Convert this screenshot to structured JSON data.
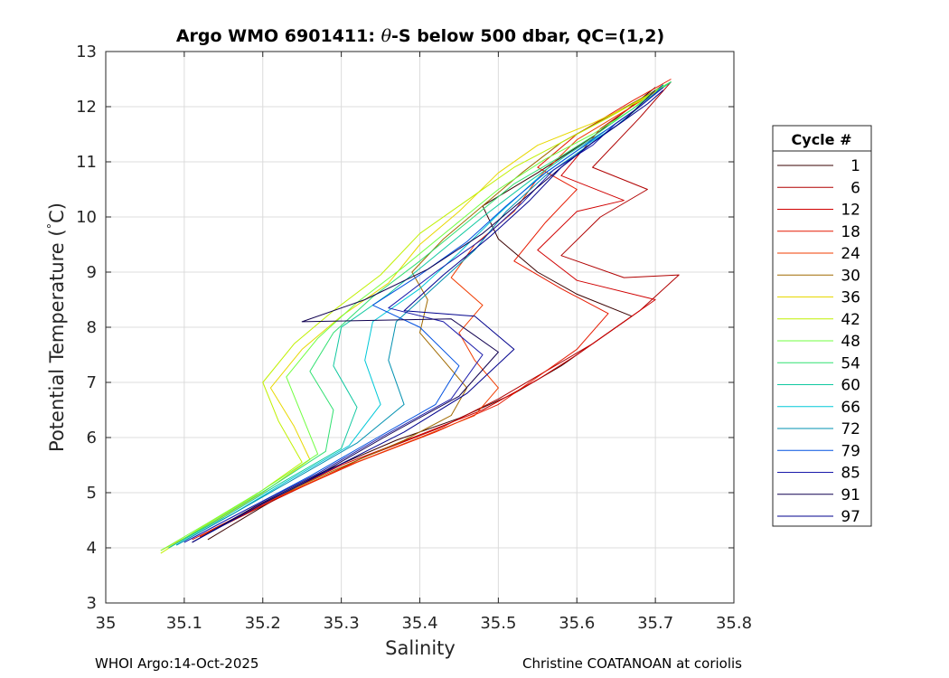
{
  "chart_data": {
    "type": "line",
    "title": "Argo WMO 6901411: θ-S below 500 dbar,  QC=(1,2)",
    "title_parts": {
      "before": "Argo WMO 6901411: ",
      "symbol": "θ",
      "after": "-S below 500 dbar,  QC=(1,2)"
    },
    "xlabel": "Salinity",
    "ylabel": "Potential Temperature (°C)",
    "ylabel_parts": {
      "main": "Potential Temperature (",
      "deg": "°",
      "unit": "C)"
    },
    "xlim": [
      35.0,
      35.8
    ],
    "ylim": [
      3,
      13
    ],
    "xticks": [
      35.0,
      35.1,
      35.2,
      35.3,
      35.4,
      35.5,
      35.6,
      35.7,
      35.8
    ],
    "xtick_labels": [
      "35",
      "35.1",
      "35.2",
      "35.3",
      "35.4",
      "35.5",
      "35.6",
      "35.7",
      "35.8"
    ],
    "yticks": [
      3,
      4,
      5,
      6,
      7,
      8,
      9,
      10,
      11,
      12,
      13
    ],
    "ytick_labels": [
      "3",
      "4",
      "5",
      "6",
      "7",
      "8",
      "9",
      "10",
      "11",
      "12",
      "13"
    ],
    "grid": true,
    "legend_title": "Cycle #",
    "legend_position": "outside-right",
    "series": [
      {
        "name": "1",
        "color": "#3a0000",
        "points": [
          [
            35.13,
            4.15
          ],
          [
            35.2,
            4.75
          ],
          [
            35.28,
            5.4
          ],
          [
            35.37,
            5.95
          ],
          [
            35.45,
            6.35
          ],
          [
            35.52,
            6.8
          ],
          [
            35.58,
            7.3
          ],
          [
            35.63,
            7.8
          ],
          [
            35.67,
            8.2
          ],
          [
            35.6,
            8.6
          ],
          [
            35.55,
            9.0
          ],
          [
            35.5,
            9.6
          ],
          [
            35.48,
            10.2
          ],
          [
            35.55,
            10.8
          ],
          [
            35.62,
            11.45
          ],
          [
            35.7,
            12.35
          ]
        ]
      },
      {
        "name": "6",
        "color": "#b00000",
        "points": [
          [
            35.12,
            4.2
          ],
          [
            35.22,
            4.9
          ],
          [
            35.33,
            5.65
          ],
          [
            35.43,
            6.2
          ],
          [
            35.5,
            6.7
          ],
          [
            35.56,
            7.2
          ],
          [
            35.62,
            7.7
          ],
          [
            35.68,
            8.3
          ],
          [
            35.73,
            8.95
          ],
          [
            35.66,
            8.9
          ],
          [
            35.58,
            9.3
          ],
          [
            35.63,
            10.0
          ],
          [
            35.69,
            10.5
          ],
          [
            35.62,
            10.9
          ],
          [
            35.68,
            11.8
          ],
          [
            35.72,
            12.45
          ]
        ]
      },
      {
        "name": "12",
        "color": "#d00000",
        "points": [
          [
            35.11,
            4.15
          ],
          [
            35.2,
            4.8
          ],
          [
            35.3,
            5.5
          ],
          [
            35.4,
            6.05
          ],
          [
            35.48,
            6.5
          ],
          [
            35.55,
            7.05
          ],
          [
            35.6,
            7.5
          ],
          [
            35.65,
            8.0
          ],
          [
            35.7,
            8.5
          ],
          [
            35.6,
            8.85
          ],
          [
            35.55,
            9.4
          ],
          [
            35.6,
            10.1
          ],
          [
            35.66,
            10.3
          ],
          [
            35.58,
            10.75
          ],
          [
            35.63,
            11.6
          ],
          [
            35.71,
            12.4
          ]
        ]
      },
      {
        "name": "18",
        "color": "#e61a00",
        "points": [
          [
            35.12,
            4.2
          ],
          [
            35.21,
            4.85
          ],
          [
            35.32,
            5.55
          ],
          [
            35.42,
            6.1
          ],
          [
            35.5,
            6.6
          ],
          [
            35.55,
            7.1
          ],
          [
            35.6,
            7.6
          ],
          [
            35.64,
            8.25
          ],
          [
            35.58,
            8.7
          ],
          [
            35.52,
            9.2
          ],
          [
            35.56,
            9.9
          ],
          [
            35.6,
            10.5
          ],
          [
            35.55,
            10.9
          ],
          [
            35.6,
            11.5
          ],
          [
            35.67,
            12.1
          ],
          [
            35.72,
            12.5
          ]
        ]
      },
      {
        "name": "24",
        "color": "#f03c00",
        "points": [
          [
            35.12,
            4.2
          ],
          [
            35.2,
            4.8
          ],
          [
            35.31,
            5.5
          ],
          [
            35.4,
            6.0
          ],
          [
            35.47,
            6.4
          ],
          [
            35.5,
            6.9
          ],
          [
            35.47,
            7.4
          ],
          [
            35.45,
            7.9
          ],
          [
            35.48,
            8.4
          ],
          [
            35.44,
            8.9
          ],
          [
            35.47,
            9.5
          ],
          [
            35.52,
            10.1
          ],
          [
            35.55,
            10.7
          ],
          [
            35.6,
            11.4
          ],
          [
            35.67,
            12.0
          ],
          [
            35.72,
            12.45
          ]
        ]
      },
      {
        "name": "30",
        "color": "#a06a00",
        "points": [
          [
            35.11,
            4.1
          ],
          [
            35.19,
            4.75
          ],
          [
            35.29,
            5.4
          ],
          [
            35.38,
            5.95
          ],
          [
            35.44,
            6.4
          ],
          [
            35.46,
            6.9
          ],
          [
            35.43,
            7.4
          ],
          [
            35.4,
            7.9
          ],
          [
            35.41,
            8.5
          ],
          [
            35.39,
            9.0
          ],
          [
            35.43,
            9.6
          ],
          [
            35.48,
            10.2
          ],
          [
            35.53,
            10.8
          ],
          [
            35.58,
            11.35
          ],
          [
            35.65,
            11.9
          ],
          [
            35.72,
            12.45
          ]
        ]
      },
      {
        "name": "36",
        "color": "#e8d800",
        "points": [
          [
            35.07,
            3.95
          ],
          [
            35.13,
            4.4
          ],
          [
            35.2,
            5.0
          ],
          [
            35.26,
            5.6
          ],
          [
            35.24,
            6.2
          ],
          [
            35.21,
            6.9
          ],
          [
            35.25,
            7.6
          ],
          [
            35.3,
            8.2
          ],
          [
            35.36,
            8.8
          ],
          [
            35.4,
            9.5
          ],
          [
            35.45,
            10.1
          ],
          [
            35.5,
            10.8
          ],
          [
            35.55,
            11.3
          ],
          [
            35.62,
            11.7
          ],
          [
            35.68,
            12.1
          ],
          [
            35.72,
            12.45
          ]
        ]
      },
      {
        "name": "42",
        "color": "#c0f000",
        "points": [
          [
            35.07,
            3.9
          ],
          [
            35.12,
            4.35
          ],
          [
            35.19,
            4.95
          ],
          [
            35.25,
            5.55
          ],
          [
            35.22,
            6.3
          ],
          [
            35.2,
            7.0
          ],
          [
            35.24,
            7.7
          ],
          [
            35.29,
            8.3
          ],
          [
            35.35,
            8.95
          ],
          [
            35.4,
            9.7
          ],
          [
            35.46,
            10.3
          ],
          [
            35.52,
            10.9
          ],
          [
            35.58,
            11.35
          ],
          [
            35.64,
            11.8
          ],
          [
            35.69,
            12.2
          ],
          [
            35.72,
            12.45
          ]
        ]
      },
      {
        "name": "48",
        "color": "#70ff40",
        "points": [
          [
            35.07,
            3.95
          ],
          [
            35.13,
            4.45
          ],
          [
            35.2,
            5.05
          ],
          [
            35.27,
            5.7
          ],
          [
            35.25,
            6.4
          ],
          [
            35.23,
            7.1
          ],
          [
            35.27,
            7.8
          ],
          [
            35.32,
            8.45
          ],
          [
            35.38,
            9.1
          ],
          [
            35.44,
            9.8
          ],
          [
            35.5,
            10.5
          ],
          [
            35.56,
            11.05
          ],
          [
            35.62,
            11.5
          ],
          [
            35.67,
            11.95
          ],
          [
            35.7,
            12.3
          ],
          [
            35.72,
            12.45
          ]
        ]
      },
      {
        "name": "54",
        "color": "#30e070",
        "points": [
          [
            35.08,
            4.0
          ],
          [
            35.14,
            4.5
          ],
          [
            35.21,
            5.1
          ],
          [
            35.28,
            5.75
          ],
          [
            35.29,
            6.5
          ],
          [
            35.26,
            7.2
          ],
          [
            35.29,
            7.9
          ],
          [
            35.34,
            8.55
          ],
          [
            35.4,
            9.2
          ],
          [
            35.46,
            9.9
          ],
          [
            35.52,
            10.6
          ],
          [
            35.58,
            11.1
          ],
          [
            35.63,
            11.55
          ],
          [
            35.67,
            11.95
          ],
          [
            35.7,
            12.25
          ],
          [
            35.72,
            12.45
          ]
        ]
      },
      {
        "name": "60",
        "color": "#10c8a0",
        "points": [
          [
            35.08,
            4.0
          ],
          [
            35.15,
            4.55
          ],
          [
            35.22,
            5.15
          ],
          [
            35.3,
            5.8
          ],
          [
            35.32,
            6.55
          ],
          [
            35.29,
            7.3
          ],
          [
            35.3,
            8.0
          ],
          [
            35.36,
            8.6
          ],
          [
            35.42,
            9.3
          ],
          [
            35.48,
            10.0
          ],
          [
            35.54,
            10.65
          ],
          [
            35.59,
            11.15
          ],
          [
            35.64,
            11.6
          ],
          [
            35.68,
            12.0
          ],
          [
            35.7,
            12.25
          ],
          [
            35.72,
            12.45
          ]
        ]
      },
      {
        "name": "66",
        "color": "#00c8d8",
        "points": [
          [
            35.09,
            4.05
          ],
          [
            35.16,
            4.6
          ],
          [
            35.23,
            5.2
          ],
          [
            35.31,
            5.85
          ],
          [
            35.35,
            6.6
          ],
          [
            35.33,
            7.4
          ],
          [
            35.34,
            8.1
          ],
          [
            35.4,
            8.7
          ],
          [
            35.45,
            9.35
          ],
          [
            35.5,
            10.05
          ],
          [
            35.55,
            10.7
          ],
          [
            35.6,
            11.2
          ],
          [
            35.65,
            11.65
          ],
          [
            35.68,
            12.0
          ],
          [
            35.7,
            12.25
          ],
          [
            35.71,
            12.4
          ]
        ]
      },
      {
        "name": "72",
        "color": "#0090b0",
        "points": [
          [
            35.09,
            4.05
          ],
          [
            35.16,
            4.6
          ],
          [
            35.24,
            5.25
          ],
          [
            35.32,
            5.9
          ],
          [
            35.38,
            6.6
          ],
          [
            35.36,
            7.4
          ],
          [
            35.37,
            8.1
          ],
          [
            35.42,
            8.75
          ],
          [
            35.47,
            9.4
          ],
          [
            35.51,
            10.1
          ],
          [
            35.56,
            10.75
          ],
          [
            35.61,
            11.25
          ],
          [
            35.65,
            11.65
          ],
          [
            35.68,
            12.0
          ],
          [
            35.7,
            12.25
          ],
          [
            35.71,
            12.4
          ]
        ]
      },
      {
        "name": "79",
        "color": "#0050e0",
        "points": [
          [
            35.1,
            4.1
          ],
          [
            35.18,
            4.7
          ],
          [
            35.26,
            5.3
          ],
          [
            35.34,
            5.95
          ],
          [
            35.42,
            6.6
          ],
          [
            35.45,
            7.3
          ],
          [
            35.4,
            8.0
          ],
          [
            35.34,
            8.4
          ],
          [
            35.4,
            8.95
          ],
          [
            35.46,
            9.55
          ],
          [
            35.51,
            10.2
          ],
          [
            35.56,
            10.8
          ],
          [
            35.61,
            11.3
          ],
          [
            35.65,
            11.7
          ],
          [
            35.68,
            12.0
          ],
          [
            35.71,
            12.35
          ]
        ]
      },
      {
        "name": "85",
        "color": "#1a1aaa",
        "points": [
          [
            35.1,
            4.1
          ],
          [
            35.18,
            4.7
          ],
          [
            35.27,
            5.35
          ],
          [
            35.35,
            6.0
          ],
          [
            35.44,
            6.7
          ],
          [
            35.48,
            7.5
          ],
          [
            35.43,
            8.1
          ],
          [
            35.36,
            8.35
          ],
          [
            35.42,
            9.0
          ],
          [
            35.48,
            9.6
          ],
          [
            35.53,
            10.25
          ],
          [
            35.57,
            10.85
          ],
          [
            35.62,
            11.3
          ],
          [
            35.65,
            11.7
          ],
          [
            35.68,
            12.0
          ],
          [
            35.71,
            12.35
          ]
        ]
      },
      {
        "name": "91",
        "color": "#100050",
        "points": [
          [
            35.11,
            4.1
          ],
          [
            35.19,
            4.75
          ],
          [
            35.28,
            5.4
          ],
          [
            35.36,
            6.05
          ],
          [
            35.45,
            6.75
          ],
          [
            35.5,
            7.55
          ],
          [
            35.44,
            8.15
          ],
          [
            35.25,
            8.1
          ],
          [
            35.33,
            8.5
          ],
          [
            35.41,
            9.05
          ],
          [
            35.48,
            9.7
          ],
          [
            35.53,
            10.3
          ],
          [
            35.58,
            10.9
          ],
          [
            35.62,
            11.35
          ],
          [
            35.66,
            11.75
          ],
          [
            35.7,
            12.3
          ]
        ]
      },
      {
        "name": "97",
        "color": "#00008c",
        "points": [
          [
            35.11,
            4.1
          ],
          [
            35.2,
            4.8
          ],
          [
            35.29,
            5.45
          ],
          [
            35.38,
            6.1
          ],
          [
            35.46,
            6.8
          ],
          [
            35.52,
            7.6
          ],
          [
            35.47,
            8.2
          ],
          [
            35.38,
            8.3
          ],
          [
            35.43,
            8.95
          ],
          [
            35.49,
            9.65
          ],
          [
            35.54,
            10.3
          ],
          [
            35.58,
            10.9
          ],
          [
            35.62,
            11.35
          ],
          [
            35.66,
            11.75
          ],
          [
            35.69,
            12.05
          ],
          [
            35.71,
            12.3
          ]
        ]
      }
    ]
  },
  "footer": {
    "left": "WHOI Argo:14-Oct-2025",
    "right": "Christine COATANOAN at coriolis"
  }
}
